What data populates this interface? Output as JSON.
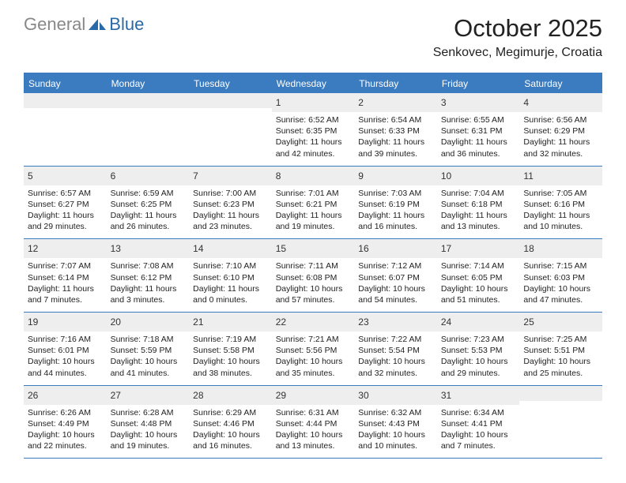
{
  "logo": {
    "gray": "General",
    "blue": "Blue"
  },
  "title": "October 2025",
  "location": "Senkovec, Megimurje, Croatia",
  "colors": {
    "header_bg": "#3b7bbf",
    "header_text": "#ffffff",
    "daynum_bg": "#eeeeee",
    "border": "#3b7bbf",
    "logo_gray": "#888888",
    "logo_blue": "#2a6aa8"
  },
  "weekdays": [
    "Sunday",
    "Monday",
    "Tuesday",
    "Wednesday",
    "Thursday",
    "Friday",
    "Saturday"
  ],
  "weeks": [
    [
      null,
      null,
      null,
      {
        "n": "1",
        "sr": "6:52 AM",
        "ss": "6:35 PM",
        "dl": "11 hours and 42 minutes."
      },
      {
        "n": "2",
        "sr": "6:54 AM",
        "ss": "6:33 PM",
        "dl": "11 hours and 39 minutes."
      },
      {
        "n": "3",
        "sr": "6:55 AM",
        "ss": "6:31 PM",
        "dl": "11 hours and 36 minutes."
      },
      {
        "n": "4",
        "sr": "6:56 AM",
        "ss": "6:29 PM",
        "dl": "11 hours and 32 minutes."
      }
    ],
    [
      {
        "n": "5",
        "sr": "6:57 AM",
        "ss": "6:27 PM",
        "dl": "11 hours and 29 minutes."
      },
      {
        "n": "6",
        "sr": "6:59 AM",
        "ss": "6:25 PM",
        "dl": "11 hours and 26 minutes."
      },
      {
        "n": "7",
        "sr": "7:00 AM",
        "ss": "6:23 PM",
        "dl": "11 hours and 23 minutes."
      },
      {
        "n": "8",
        "sr": "7:01 AM",
        "ss": "6:21 PM",
        "dl": "11 hours and 19 minutes."
      },
      {
        "n": "9",
        "sr": "7:03 AM",
        "ss": "6:19 PM",
        "dl": "11 hours and 16 minutes."
      },
      {
        "n": "10",
        "sr": "7:04 AM",
        "ss": "6:18 PM",
        "dl": "11 hours and 13 minutes."
      },
      {
        "n": "11",
        "sr": "7:05 AM",
        "ss": "6:16 PM",
        "dl": "11 hours and 10 minutes."
      }
    ],
    [
      {
        "n": "12",
        "sr": "7:07 AM",
        "ss": "6:14 PM",
        "dl": "11 hours and 7 minutes."
      },
      {
        "n": "13",
        "sr": "7:08 AM",
        "ss": "6:12 PM",
        "dl": "11 hours and 3 minutes."
      },
      {
        "n": "14",
        "sr": "7:10 AM",
        "ss": "6:10 PM",
        "dl": "11 hours and 0 minutes."
      },
      {
        "n": "15",
        "sr": "7:11 AM",
        "ss": "6:08 PM",
        "dl": "10 hours and 57 minutes."
      },
      {
        "n": "16",
        "sr": "7:12 AM",
        "ss": "6:07 PM",
        "dl": "10 hours and 54 minutes."
      },
      {
        "n": "17",
        "sr": "7:14 AM",
        "ss": "6:05 PM",
        "dl": "10 hours and 51 minutes."
      },
      {
        "n": "18",
        "sr": "7:15 AM",
        "ss": "6:03 PM",
        "dl": "10 hours and 47 minutes."
      }
    ],
    [
      {
        "n": "19",
        "sr": "7:16 AM",
        "ss": "6:01 PM",
        "dl": "10 hours and 44 minutes."
      },
      {
        "n": "20",
        "sr": "7:18 AM",
        "ss": "5:59 PM",
        "dl": "10 hours and 41 minutes."
      },
      {
        "n": "21",
        "sr": "7:19 AM",
        "ss": "5:58 PM",
        "dl": "10 hours and 38 minutes."
      },
      {
        "n": "22",
        "sr": "7:21 AM",
        "ss": "5:56 PM",
        "dl": "10 hours and 35 minutes."
      },
      {
        "n": "23",
        "sr": "7:22 AM",
        "ss": "5:54 PM",
        "dl": "10 hours and 32 minutes."
      },
      {
        "n": "24",
        "sr": "7:23 AM",
        "ss": "5:53 PM",
        "dl": "10 hours and 29 minutes."
      },
      {
        "n": "25",
        "sr": "7:25 AM",
        "ss": "5:51 PM",
        "dl": "10 hours and 25 minutes."
      }
    ],
    [
      {
        "n": "26",
        "sr": "6:26 AM",
        "ss": "4:49 PM",
        "dl": "10 hours and 22 minutes."
      },
      {
        "n": "27",
        "sr": "6:28 AM",
        "ss": "4:48 PM",
        "dl": "10 hours and 19 minutes."
      },
      {
        "n": "28",
        "sr": "6:29 AM",
        "ss": "4:46 PM",
        "dl": "10 hours and 16 minutes."
      },
      {
        "n": "29",
        "sr": "6:31 AM",
        "ss": "4:44 PM",
        "dl": "10 hours and 13 minutes."
      },
      {
        "n": "30",
        "sr": "6:32 AM",
        "ss": "4:43 PM",
        "dl": "10 hours and 10 minutes."
      },
      {
        "n": "31",
        "sr": "6:34 AM",
        "ss": "4:41 PM",
        "dl": "10 hours and 7 minutes."
      },
      null
    ]
  ],
  "labels": {
    "sunrise": "Sunrise:",
    "sunset": "Sunset:",
    "daylight": "Daylight:"
  }
}
